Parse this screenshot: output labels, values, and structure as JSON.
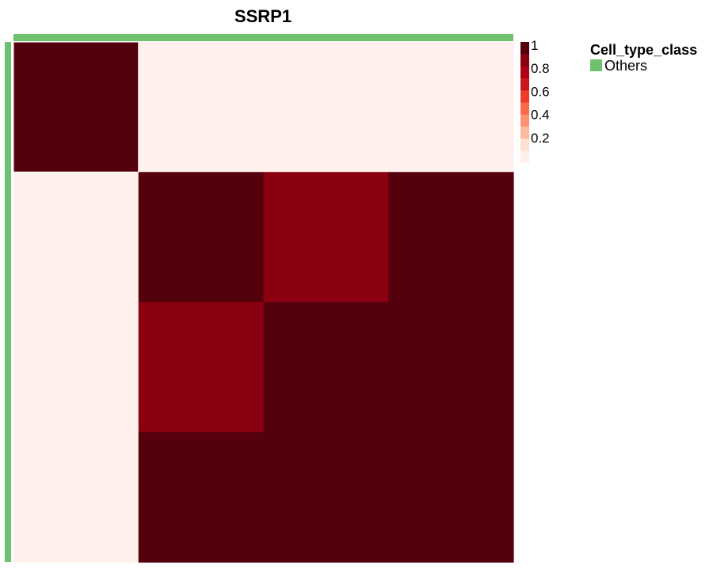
{
  "chart_data": {
    "type": "heatmap",
    "title": "SSRP1",
    "matrix": [
      [
        1,
        0,
        0,
        0
      ],
      [
        0,
        1,
        0.85,
        0.92
      ],
      [
        0,
        0.85,
        1,
        0.92
      ],
      [
        0,
        0.92,
        0.92,
        1
      ]
    ],
    "color_scale": {
      "range": [
        0,
        1
      ],
      "ticks": [
        "0.2",
        "0.4",
        "0.6",
        "0.8",
        "1"
      ],
      "colors": [
        "#fff0ec",
        "#fee0d2",
        "#fcbba1",
        "#fc9272",
        "#fb6a4a",
        "#ef3b2c",
        "#cb181d",
        "#b00018",
        "#8b0010",
        "#55000d"
      ]
    },
    "annotation": {
      "title": "Cell_type_class",
      "entries": [
        {
          "label": "Others",
          "color": "#6fc06f"
        }
      ]
    },
    "grid": false,
    "legend_position": "right"
  }
}
